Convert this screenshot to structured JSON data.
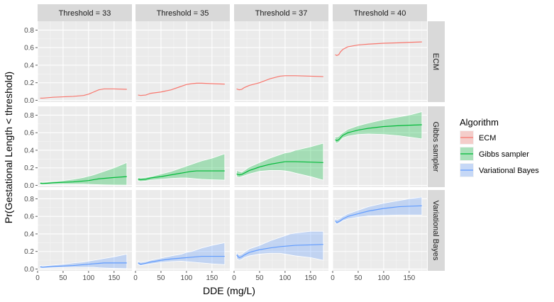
{
  "chart_data": {
    "type": "line",
    "xlabel": "DDE (mg/L)",
    "ylabel": "Pr(Gestational Length < threshold)",
    "xlim": [
      0,
      185
    ],
    "ylim": [
      -0.02,
      0.9
    ],
    "x_ticks": [
      "0",
      "50",
      "100",
      "150"
    ],
    "y_ticks": [
      "0.0",
      "0.2",
      "0.4",
      "0.6",
      "0.8"
    ],
    "grid": true,
    "columns": [
      "Threshold = 33",
      "Threshold = 35",
      "Threshold = 37",
      "Threshold = 40"
    ],
    "rows": [
      "ECM",
      "Gibbs sampler",
      "Variational Bayes"
    ],
    "legend": {
      "title": "Algorithm",
      "position": "right",
      "entries": [
        "ECM",
        "Gibbs sampler",
        "Variational Bayes"
      ]
    },
    "colors": {
      "ECM": "#F8766D",
      "Gibbs sampler": "#00BA38",
      "Variational Bayes": "#619CFF"
    },
    "panels": {
      "ECM": [
        {
          "x": [
            5,
            10,
            20,
            30,
            50,
            70,
            90,
            100,
            110,
            120,
            130,
            150,
            175
          ],
          "y": [
            0.025,
            0.025,
            0.03,
            0.035,
            0.04,
            0.045,
            0.055,
            0.07,
            0.095,
            0.12,
            0.13,
            0.13,
            0.125
          ]
        },
        {
          "x": [
            5,
            10,
            20,
            30,
            50,
            70,
            90,
            100,
            110,
            120,
            130,
            150,
            175
          ],
          "y": [
            0.06,
            0.055,
            0.06,
            0.08,
            0.095,
            0.12,
            0.16,
            0.18,
            0.19,
            0.195,
            0.195,
            0.19,
            0.185
          ]
        },
        {
          "x": [
            5,
            10,
            15,
            20,
            30,
            50,
            70,
            90,
            100,
            110,
            120,
            150,
            175
          ],
          "y": [
            0.13,
            0.12,
            0.125,
            0.145,
            0.17,
            0.2,
            0.245,
            0.275,
            0.28,
            0.28,
            0.28,
            0.275,
            0.27
          ]
        },
        {
          "x": [
            5,
            8,
            12,
            15,
            20,
            30,
            50,
            70,
            100,
            130,
            150,
            175
          ],
          "y": [
            0.52,
            0.51,
            0.52,
            0.55,
            0.58,
            0.61,
            0.63,
            0.64,
            0.65,
            0.655,
            0.66,
            0.665
          ]
        }
      ],
      "Gibbs sampler": [
        {
          "x": [
            5,
            10,
            20,
            30,
            50,
            70,
            90,
            100,
            110,
            120,
            130,
            150,
            175
          ],
          "y": [
            0.025,
            0.022,
            0.025,
            0.03,
            0.035,
            0.04,
            0.05,
            0.055,
            0.065,
            0.075,
            0.08,
            0.09,
            0.1
          ],
          "lower": [
            0.01,
            0.008,
            0.01,
            0.012,
            0.015,
            0.015,
            0.015,
            0.012,
            0.01,
            0.008,
            0.006,
            0.004,
            0.003
          ],
          "upper": [
            0.04,
            0.035,
            0.04,
            0.045,
            0.055,
            0.07,
            0.09,
            0.105,
            0.12,
            0.14,
            0.16,
            0.2,
            0.26
          ]
        },
        {
          "x": [
            5,
            10,
            20,
            30,
            50,
            70,
            90,
            100,
            110,
            120,
            130,
            150,
            175
          ],
          "y": [
            0.07,
            0.065,
            0.07,
            0.085,
            0.1,
            0.12,
            0.14,
            0.15,
            0.16,
            0.165,
            0.165,
            0.165,
            0.165
          ],
          "lower": [
            0.05,
            0.045,
            0.05,
            0.06,
            0.07,
            0.08,
            0.085,
            0.085,
            0.08,
            0.075,
            0.07,
            0.065,
            0.06
          ],
          "upper": [
            0.09,
            0.085,
            0.09,
            0.1,
            0.13,
            0.16,
            0.2,
            0.22,
            0.24,
            0.26,
            0.28,
            0.31,
            0.36
          ]
        },
        {
          "x": [
            5,
            10,
            15,
            20,
            30,
            50,
            70,
            90,
            100,
            110,
            120,
            150,
            175
          ],
          "y": [
            0.13,
            0.12,
            0.125,
            0.14,
            0.17,
            0.21,
            0.24,
            0.26,
            0.27,
            0.27,
            0.27,
            0.265,
            0.26
          ],
          "lower": [
            0.1,
            0.09,
            0.1,
            0.11,
            0.13,
            0.16,
            0.17,
            0.17,
            0.165,
            0.155,
            0.14,
            0.1,
            0.06
          ],
          "upper": [
            0.17,
            0.16,
            0.15,
            0.17,
            0.21,
            0.26,
            0.31,
            0.35,
            0.37,
            0.38,
            0.4,
            0.44,
            0.48
          ]
        },
        {
          "x": [
            5,
            8,
            12,
            15,
            20,
            30,
            50,
            70,
            100,
            130,
            150,
            175
          ],
          "y": [
            0.52,
            0.51,
            0.52,
            0.54,
            0.57,
            0.6,
            0.63,
            0.65,
            0.67,
            0.68,
            0.685,
            0.69
          ],
          "lower": [
            0.49,
            0.48,
            0.49,
            0.51,
            0.54,
            0.56,
            0.58,
            0.585,
            0.58,
            0.565,
            0.55,
            0.53
          ],
          "upper": [
            0.56,
            0.55,
            0.56,
            0.58,
            0.6,
            0.64,
            0.68,
            0.71,
            0.75,
            0.78,
            0.8,
            0.84
          ]
        }
      ],
      "Variational Bayes": [
        {
          "x": [
            5,
            10,
            20,
            30,
            50,
            70,
            90,
            100,
            110,
            120,
            130,
            150,
            175
          ],
          "y": [
            0.025,
            0.02,
            0.025,
            0.03,
            0.035,
            0.04,
            0.05,
            0.055,
            0.06,
            0.065,
            0.07,
            0.07,
            0.07
          ],
          "lower": [
            0.012,
            0.01,
            0.012,
            0.015,
            0.018,
            0.02,
            0.02,
            0.02,
            0.02,
            0.015,
            0.012,
            0.008,
            0.005
          ],
          "upper": [
            0.04,
            0.035,
            0.04,
            0.045,
            0.055,
            0.07,
            0.08,
            0.09,
            0.1,
            0.11,
            0.12,
            0.14,
            0.17
          ]
        },
        {
          "x": [
            5,
            10,
            20,
            30,
            50,
            70,
            90,
            100,
            110,
            120,
            130,
            150,
            175
          ],
          "y": [
            0.07,
            0.055,
            0.065,
            0.08,
            0.1,
            0.115,
            0.125,
            0.13,
            0.135,
            0.14,
            0.145,
            0.145,
            0.145
          ],
          "lower": [
            0.05,
            0.04,
            0.05,
            0.06,
            0.075,
            0.085,
            0.09,
            0.085,
            0.08,
            0.075,
            0.07,
            0.06,
            0.05
          ],
          "upper": [
            0.09,
            0.075,
            0.085,
            0.1,
            0.125,
            0.15,
            0.17,
            0.19,
            0.2,
            0.22,
            0.24,
            0.27,
            0.3
          ]
        },
        {
          "x": [
            5,
            10,
            15,
            20,
            30,
            50,
            70,
            90,
            100,
            110,
            120,
            150,
            175
          ],
          "y": [
            0.16,
            0.13,
            0.14,
            0.16,
            0.19,
            0.22,
            0.24,
            0.255,
            0.26,
            0.265,
            0.27,
            0.275,
            0.28
          ],
          "lower": [
            0.12,
            0.1,
            0.11,
            0.13,
            0.15,
            0.17,
            0.18,
            0.18,
            0.17,
            0.16,
            0.15,
            0.13,
            0.1
          ],
          "upper": [
            0.19,
            0.16,
            0.17,
            0.19,
            0.23,
            0.27,
            0.32,
            0.36,
            0.38,
            0.4,
            0.41,
            0.43,
            0.43
          ]
        },
        {
          "x": [
            5,
            8,
            12,
            15,
            20,
            30,
            50,
            70,
            100,
            130,
            150,
            175
          ],
          "y": [
            0.55,
            0.53,
            0.54,
            0.55,
            0.57,
            0.6,
            0.63,
            0.66,
            0.69,
            0.71,
            0.715,
            0.72
          ],
          "lower": [
            0.53,
            0.51,
            0.52,
            0.53,
            0.55,
            0.57,
            0.59,
            0.605,
            0.61,
            0.615,
            0.615,
            0.615
          ],
          "upper": [
            0.58,
            0.56,
            0.57,
            0.58,
            0.6,
            0.63,
            0.67,
            0.71,
            0.75,
            0.78,
            0.8,
            0.82
          ]
        }
      ]
    }
  }
}
